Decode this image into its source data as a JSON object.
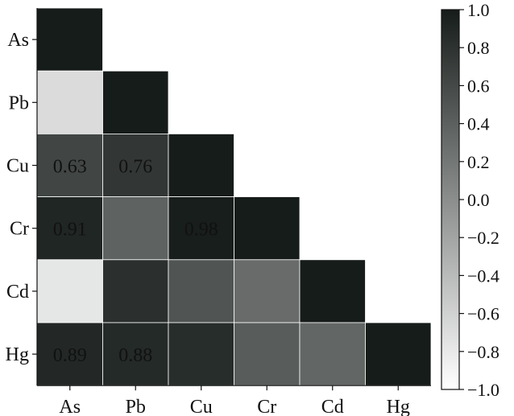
{
  "chart_data": {
    "type": "heatmap",
    "title": "",
    "xlabel": "",
    "ylabel": "",
    "rows": [
      "As",
      "Pb",
      "Cu",
      "Cr",
      "Cd",
      "Hg"
    ],
    "cols": [
      "As",
      "Pb",
      "Cu",
      "Cr",
      "Cd",
      "Hg"
    ],
    "mask": "upper-triangle",
    "values": [
      [
        1.0,
        null,
        null,
        null,
        null,
        null
      ],
      [
        -0.68,
        1.0,
        null,
        null,
        null,
        null
      ],
      [
        0.63,
        0.76,
        1.0,
        null,
        null,
        null
      ],
      [
        0.91,
        0.38,
        0.98,
        1.0,
        null,
        null
      ],
      [
        -0.78,
        0.82,
        0.5,
        0.3,
        1.0,
        null
      ],
      [
        0.89,
        0.88,
        0.85,
        0.43,
        0.35,
        1.0
      ]
    ],
    "cell_labels": [
      [
        "",
        "",
        "",
        "",
        "",
        ""
      ],
      [
        "",
        "",
        "",
        "",
        "",
        ""
      ],
      [
        "0.63",
        "0.76",
        "",
        "",
        "",
        ""
      ],
      [
        "0.91",
        "",
        "0.98",
        "",
        "",
        ""
      ],
      [
        "",
        "",
        "",
        "",
        "",
        ""
      ],
      [
        "0.89",
        "0.88",
        "",
        "",
        "",
        ""
      ]
    ],
    "colorbar": {
      "min": -1.0,
      "max": 1.0,
      "ticks": [
        "1.0",
        "0.8",
        "0.6",
        "0.4",
        "0.2",
        "0.0",
        "−0.2",
        "−0.4",
        "−0.6",
        "−0.8",
        "−1.0"
      ],
      "colormap": "greys",
      "low_color": "#ffffff",
      "high_color": "#161c19"
    },
    "grid": false,
    "legend": "colorbar-right"
  }
}
